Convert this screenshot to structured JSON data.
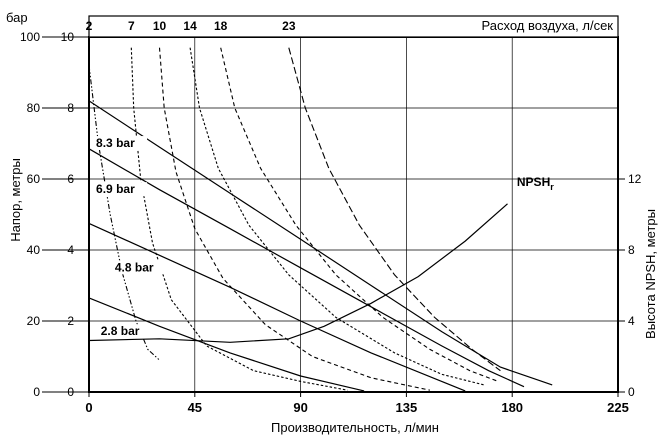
{
  "chart_data": {
    "type": "line",
    "title": "",
    "xlabel": "Производительность, л/мин",
    "ylabel_left": "Напор, метры",
    "ylabel_right": "Высота NPSH, метры",
    "pressure_unit_label": "бар",
    "air_axis_label": "Расход воздуха, л/сек",
    "xlim": [
      0,
      225
    ],
    "ylim": [
      0,
      100
    ],
    "x_ticks": [
      "0",
      "45",
      "90",
      "135",
      "180",
      "225"
    ],
    "x_tick_values": [
      0,
      45,
      90,
      135,
      180,
      225
    ],
    "y_ticks_m": [
      "0",
      "20",
      "40",
      "60",
      "80",
      "100"
    ],
    "y_tick_values_m": [
      0,
      20,
      40,
      60,
      80,
      100
    ],
    "y_ticks_bar": [
      "0",
      "2",
      "4",
      "6",
      "8",
      "10"
    ],
    "y_tick_values_bar": [
      0,
      2,
      4,
      6,
      8,
      10
    ],
    "y_ticks_npsh": [
      "0",
      "4",
      "8",
      "12"
    ],
    "y_tick_values_npsh": [
      0,
      4,
      8,
      12
    ],
    "npsh_max": 12,
    "air_ticks": [
      "2",
      "7",
      "10",
      "14",
      "18",
      "23"
    ],
    "grid": true,
    "pressure_curves": [
      {
        "name": "8.3 bar",
        "points": [
          [
            0,
            82
          ],
          [
            30,
            69
          ],
          [
            60,
            56
          ],
          [
            90,
            43
          ],
          [
            120,
            30
          ],
          [
            150,
            17
          ],
          [
            175,
            7
          ],
          [
            197,
            2
          ]
        ],
        "label_at": [
          3,
          69
        ]
      },
      {
        "name": "6.9 bar",
        "points": [
          [
            0,
            68.5
          ],
          [
            30,
            57
          ],
          [
            60,
            46
          ],
          [
            90,
            35
          ],
          [
            120,
            24
          ],
          [
            150,
            13
          ],
          [
            170,
            6
          ],
          [
            185,
            1.5
          ]
        ],
        "label_at": [
          3,
          56
        ]
      },
      {
        "name": "4.8 bar",
        "points": [
          [
            0,
            47.5
          ],
          [
            30,
            38.5
          ],
          [
            60,
            29.5
          ],
          [
            90,
            20
          ],
          [
            120,
            11
          ],
          [
            150,
            3
          ],
          [
            160,
            0.3
          ]
        ],
        "label_at": [
          11,
          34
        ]
      },
      {
        "name": "2.8 bar",
        "points": [
          [
            0,
            26.5
          ],
          [
            30,
            18.5
          ],
          [
            60,
            11
          ],
          [
            90,
            4.5
          ],
          [
            117,
            0.3
          ]
        ],
        "label_at": [
          5,
          16
        ]
      }
    ],
    "npsh_curve": {
      "name": "NPSH",
      "name_subscript": "r",
      "points": [
        [
          0,
          2.9
        ],
        [
          30,
          3.0
        ],
        [
          60,
          2.8
        ],
        [
          85,
          3.0
        ],
        [
          100,
          3.7
        ],
        [
          120,
          5.0
        ],
        [
          140,
          6.5
        ],
        [
          160,
          8.5
        ],
        [
          178,
          10.6
        ]
      ],
      "label_at": [
        182,
        58
      ]
    },
    "air_curves": [
      {
        "label": "2",
        "style": "dashdot",
        "points": [
          [
            0,
            92
          ],
          [
            4,
            70
          ],
          [
            9,
            50
          ],
          [
            14,
            34
          ],
          [
            20,
            20
          ],
          [
            25,
            12
          ],
          [
            30,
            9
          ]
        ]
      },
      {
        "label": "7",
        "style": "dashed-fine",
        "points": [
          [
            18,
            97
          ],
          [
            19,
            80
          ],
          [
            22,
            60
          ],
          [
            27,
            42
          ],
          [
            35,
            26
          ],
          [
            50,
            13
          ],
          [
            70,
            6
          ],
          [
            90,
            3
          ],
          [
            110,
            0.5
          ]
        ]
      },
      {
        "label": "10",
        "style": "dashed-mid",
        "points": [
          [
            30,
            97
          ],
          [
            32,
            80
          ],
          [
            37,
            62
          ],
          [
            45,
            46
          ],
          [
            57,
            32
          ],
          [
            75,
            19
          ],
          [
            95,
            10
          ],
          [
            120,
            4
          ],
          [
            145,
            0.5
          ]
        ]
      },
      {
        "label": "14",
        "style": "dashed-fine",
        "points": [
          [
            43,
            97
          ],
          [
            47,
            80
          ],
          [
            55,
            63
          ],
          [
            68,
            47
          ],
          [
            85,
            33
          ],
          [
            105,
            21
          ],
          [
            130,
            11
          ],
          [
            150,
            5
          ],
          [
            168,
            2
          ]
        ]
      },
      {
        "label": "18",
        "style": "dashed-mid",
        "points": [
          [
            56,
            97
          ],
          [
            62,
            80
          ],
          [
            73,
            63
          ],
          [
            88,
            47
          ],
          [
            105,
            33
          ],
          [
            125,
            21
          ],
          [
            145,
            12
          ],
          [
            162,
            6
          ],
          [
            174,
            3
          ]
        ]
      },
      {
        "label": "23",
        "style": "dashed-long",
        "points": [
          [
            85,
            97
          ],
          [
            92,
            80
          ],
          [
            102,
            63
          ],
          [
            115,
            47
          ],
          [
            130,
            33
          ],
          [
            147,
            21
          ],
          [
            163,
            12
          ],
          [
            175,
            6
          ]
        ]
      }
    ]
  }
}
